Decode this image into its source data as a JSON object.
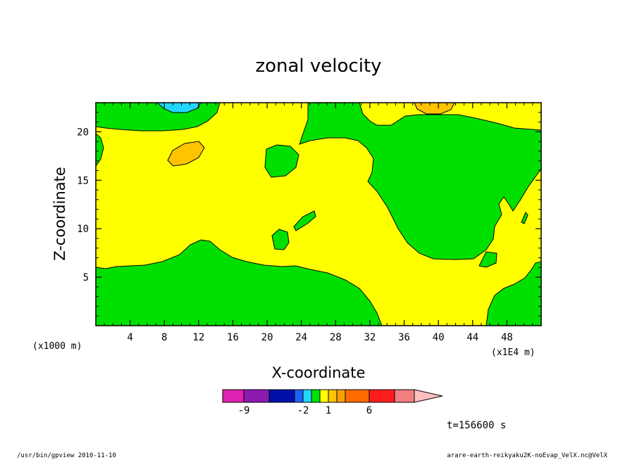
{
  "chart_data": {
    "type": "heatmap",
    "title": "zonal velocity",
    "xlabel": "X-coordinate",
    "ylabel": "Z-coordinate",
    "x_unit": "(x1E4 m)",
    "z_unit": "(x1000 m)",
    "xlim": [
      0,
      52
    ],
    "ylim": [
      0,
      23
    ],
    "x_ticks": [
      4,
      8,
      12,
      16,
      20,
      24,
      28,
      32,
      36,
      40,
      44,
      48
    ],
    "y_ticks": [
      5,
      10,
      15,
      20
    ],
    "time_label": "t=156600 s",
    "colorbar": {
      "labels": [
        {
          "value": -9,
          "text": "-9"
        },
        {
          "value": -2,
          "text": "-2"
        },
        {
          "value": 1,
          "text": "1"
        },
        {
          "value": 6,
          "text": "6"
        }
      ],
      "levels": [
        {
          "upper": -9,
          "color": "#e020b0"
        },
        {
          "upper": -6,
          "color": "#8a1ab0"
        },
        {
          "upper": -3,
          "color": "#0010a8"
        },
        {
          "upper": -2,
          "color": "#1e60ff"
        },
        {
          "upper": -1,
          "color": "#20d8ff"
        },
        {
          "upper": 0,
          "color": "#00e000"
        },
        {
          "upper": 1,
          "color": "#ffff00"
        },
        {
          "upper": 2,
          "color": "#ffc400"
        },
        {
          "upper": 3,
          "color": "#ffa000"
        },
        {
          "upper": 6,
          "color": "#ff6a00"
        },
        {
          "upper": 9,
          "color": "#ff1e1e"
        },
        {
          "upper": 12,
          "color": "#f08080"
        }
      ],
      "overflow_color": "#ffc0c0"
    },
    "regions": {
      "background_value_range": [
        0,
        1
      ],
      "background_color": "#ffff00",
      "positive_color": "#00e000",
      "negative_color": "#20d8ff",
      "strong_color": "#ffc400"
    }
  },
  "footer": {
    "left": "/usr/bin/gpview   2010-11-10",
    "right": "arare-earth-reikyaku2K-noEvap_VelX.nc@VelX"
  }
}
